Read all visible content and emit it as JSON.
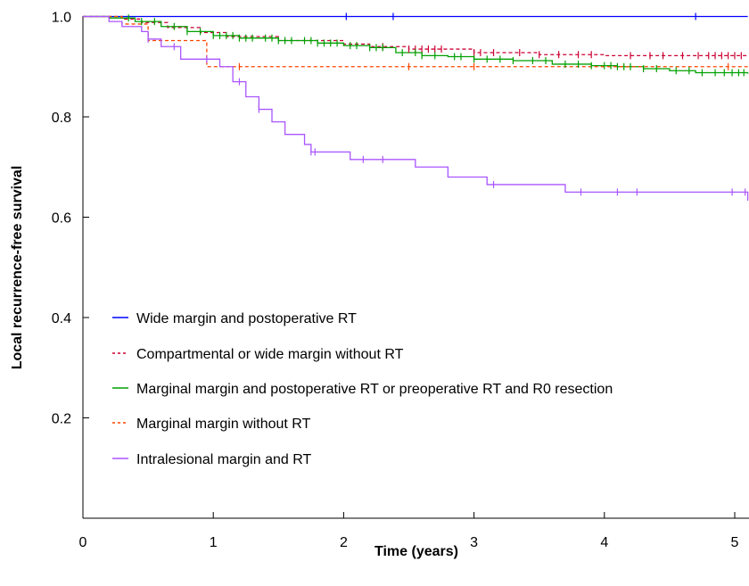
{
  "chart_data": {
    "type": "line",
    "subtype": "kaplan-meier",
    "title": "",
    "xlabel": "Time (years)",
    "ylabel": "Local recurrence-free survival",
    "xlim": [
      0,
      5.1
    ],
    "ylim": [
      0,
      1.0
    ],
    "x_ticks": [
      0,
      1,
      2,
      3,
      4,
      5
    ],
    "x_tick_labels": [
      "0",
      "1",
      "2",
      "3",
      "4",
      "5"
    ],
    "y_ticks": [
      0.2,
      0.4,
      0.6,
      0.8,
      1.0
    ],
    "y_tick_labels": [
      "0.2",
      "0.4",
      "0.6",
      "0.8",
      "1.0"
    ],
    "grid": false,
    "legend_position": "lower-left",
    "series": [
      {
        "name": "Wide margin and postoperative RT",
        "color": "#0000ff",
        "dash": "solid",
        "x": [
          0,
          5.1
        ],
        "y": [
          1.0,
          1.0
        ],
        "censor_x": [
          2.02,
          2.38,
          4.7
        ]
      },
      {
        "name": "Compartmental or wide margin without RT",
        "color": "#cc0033",
        "dash": "dashed",
        "x": [
          0,
          0.3,
          0.45,
          0.65,
          0.9,
          1.1,
          1.5,
          2.0,
          2.2,
          2.5,
          3.0,
          3.5,
          4.0,
          5.1
        ],
        "y": [
          1.0,
          0.995,
          0.988,
          0.978,
          0.968,
          0.96,
          0.952,
          0.945,
          0.94,
          0.935,
          0.928,
          0.924,
          0.922,
          0.922
        ],
        "censor_x": [
          2.3,
          2.5,
          2.55,
          2.6,
          2.65,
          2.7,
          2.75,
          3.0,
          3.05,
          3.15,
          3.35,
          3.5,
          3.65,
          3.8,
          3.9,
          4.2,
          4.35,
          4.45,
          4.6,
          4.72,
          4.8,
          4.85,
          4.9,
          4.95,
          5.0,
          5.05
        ]
      },
      {
        "name": "Marginal margin and postoperative RT or preoperative RT and R0 resection",
        "color": "#00a000",
        "dash": "solid",
        "x": [
          0,
          0.2,
          0.4,
          0.6,
          0.8,
          1.0,
          1.2,
          1.5,
          1.8,
          2.0,
          2.2,
          2.4,
          2.6,
          2.8,
          3.0,
          3.3,
          3.6,
          3.9,
          4.1,
          4.3,
          4.5,
          4.7,
          5.1
        ],
        "y": [
          1.0,
          0.997,
          0.99,
          0.98,
          0.97,
          0.962,
          0.957,
          0.952,
          0.947,
          0.942,
          0.938,
          0.928,
          0.922,
          0.92,
          0.915,
          0.912,
          0.905,
          0.902,
          0.9,
          0.896,
          0.892,
          0.888,
          0.886
        ],
        "censor_x": [
          0.35,
          0.45,
          0.55,
          0.7,
          0.8,
          0.9,
          1.0,
          1.05,
          1.1,
          1.15,
          1.2,
          1.25,
          1.3,
          1.4,
          1.45,
          1.5,
          1.55,
          1.6,
          1.7,
          1.75,
          1.8,
          1.85,
          1.9,
          1.95,
          2.05,
          2.1,
          2.2,
          2.25,
          2.3,
          2.45,
          2.55,
          2.6,
          2.7,
          2.85,
          2.9,
          3.0,
          3.1,
          3.2,
          3.3,
          3.45,
          3.55,
          3.7,
          3.8,
          3.9,
          4.0,
          4.05,
          4.1,
          4.15,
          4.2,
          4.3,
          4.4,
          4.55,
          4.65,
          4.75,
          4.85,
          4.92,
          4.98,
          5.03,
          5.07
        ]
      },
      {
        "name": "Marginal margin without RT",
        "color": "#ff4400",
        "dash": "dashed",
        "x": [
          0,
          0.3,
          0.5,
          0.95,
          5.1
        ],
        "y": [
          1.0,
          0.985,
          0.952,
          0.9,
          0.9
        ],
        "censor_x": [
          1.2,
          2.5,
          3.0,
          4.95
        ]
      },
      {
        "name": "Intralesional margin and RT",
        "color": "#aa55ff",
        "dash": "solid",
        "x": [
          0,
          0.2,
          0.3,
          0.45,
          0.5,
          0.6,
          0.75,
          1.05,
          1.15,
          1.25,
          1.35,
          1.45,
          1.55,
          1.7,
          1.75,
          2.05,
          2.55,
          2.8,
          3.1,
          3.7,
          5.1
        ],
        "y": [
          1.0,
          0.99,
          0.98,
          0.97,
          0.955,
          0.94,
          0.915,
          0.9,
          0.87,
          0.84,
          0.815,
          0.79,
          0.765,
          0.745,
          0.73,
          0.715,
          0.7,
          0.68,
          0.665,
          0.65,
          0.633
        ],
        "censor_x": [
          0.5,
          0.7,
          0.95,
          1.2,
          1.35,
          1.75,
          1.78,
          2.15,
          2.3,
          3.15,
          3.82,
          4.1,
          4.25,
          4.98,
          5.08
        ]
      }
    ]
  }
}
